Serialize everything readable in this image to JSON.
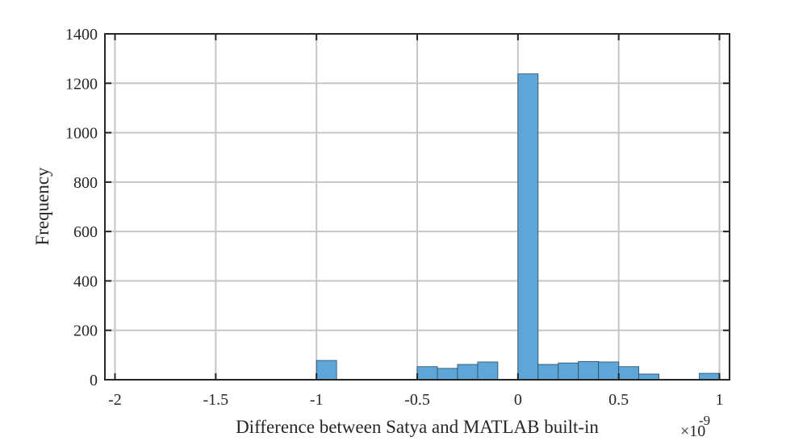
{
  "chart_data": {
    "type": "bar",
    "xlabel": "Difference between Satya and MATLAB built-in",
    "ylabel": "Frequency",
    "x_exponent_label": "×10",
    "x_exponent_power": "-9",
    "xlim": [
      -2.05,
      1.05
    ],
    "ylim": [
      0,
      1400
    ],
    "grid": true,
    "x_ticks": [
      -2,
      -1.5,
      -1,
      -0.5,
      0,
      0.5,
      1
    ],
    "x_tick_labels": [
      "-2",
      "-1.5",
      "-1",
      "-0.5",
      "0",
      "0.5",
      "1"
    ],
    "y_ticks": [
      0,
      200,
      400,
      600,
      800,
      1000,
      1200,
      1400
    ],
    "y_tick_labels": [
      "0",
      "200",
      "400",
      "600",
      "800",
      "1000",
      "1200",
      "1400"
    ],
    "bar_color": "#5ea5d8",
    "bin_width": 0.1,
    "bins": [
      {
        "x0": -1.0,
        "x1": -0.9,
        "count": 78
      },
      {
        "x0": -0.5,
        "x1": -0.4,
        "count": 53
      },
      {
        "x0": -0.4,
        "x1": -0.3,
        "count": 46
      },
      {
        "x0": -0.3,
        "x1": -0.2,
        "count": 62
      },
      {
        "x0": -0.2,
        "x1": -0.1,
        "count": 72
      },
      {
        "x0": 0.0,
        "x1": 0.1,
        "count": 1238
      },
      {
        "x0": 0.1,
        "x1": 0.2,
        "count": 62
      },
      {
        "x0": 0.2,
        "x1": 0.3,
        "count": 68
      },
      {
        "x0": 0.3,
        "x1": 0.4,
        "count": 74
      },
      {
        "x0": 0.4,
        "x1": 0.5,
        "count": 72
      },
      {
        "x0": 0.5,
        "x1": 0.6,
        "count": 53
      },
      {
        "x0": 0.6,
        "x1": 0.7,
        "count": 23
      },
      {
        "x0": 0.9,
        "x1": 1.0,
        "count": 26
      }
    ]
  }
}
